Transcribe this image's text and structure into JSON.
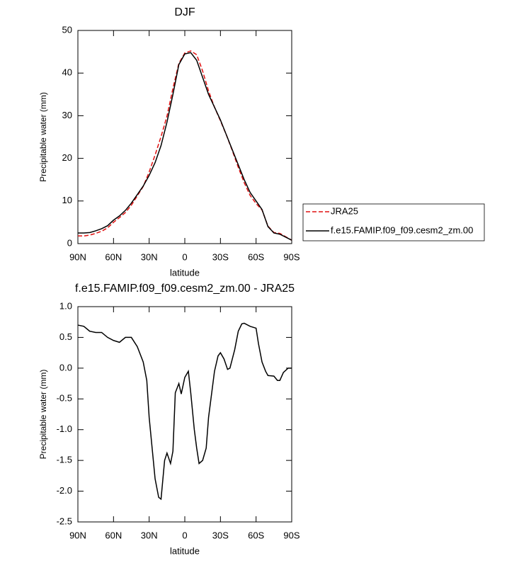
{
  "chart_data": [
    {
      "type": "line",
      "title": "DJF",
      "xlabel": "latitude",
      "ylabel": "Precipitable water (mm)",
      "x": [
        90,
        85,
        80,
        75,
        70,
        65,
        60,
        55,
        50,
        45,
        40,
        35,
        30,
        25,
        20,
        15,
        10,
        5,
        0,
        -5,
        -10,
        -15,
        -20,
        -25,
        -30,
        -35,
        -40,
        -45,
        -50,
        -55,
        -60,
        -65,
        -70,
        -75,
        -80,
        -85,
        -90
      ],
      "series": [
        {
          "name": "JRA25",
          "color": "#e01010",
          "line_style": "dashed",
          "values": [
            1.8,
            1.8,
            2.0,
            2.4,
            2.9,
            3.7,
            5.0,
            6.1,
            7.3,
            9.0,
            11.2,
            13.4,
            16.8,
            20.8,
            25.1,
            29.9,
            36.4,
            42.3,
            44.7,
            45.2,
            44.3,
            40.5,
            35.8,
            32.0,
            28.8,
            25.5,
            21.8,
            17.9,
            14.3,
            11.3,
            9.4,
            7.9,
            4.1,
            2.6,
            2.4,
            1.6,
            0.8
          ]
        },
        {
          "name": "f.e15.FAMIP.f09_f09.cesm2_zm.00",
          "color": "#000000",
          "line_style": "solid",
          "values": [
            2.5,
            2.5,
            2.6,
            3.0,
            3.5,
            4.2,
            5.5,
            6.5,
            7.8,
            9.5,
            11.5,
            13.5,
            16.0,
            19.0,
            23.0,
            28.5,
            35.0,
            42.0,
            44.5,
            44.8,
            43.0,
            39.0,
            35.0,
            32.0,
            29.0,
            25.5,
            22.0,
            18.5,
            15.0,
            12.0,
            10.0,
            8.0,
            4.0,
            2.5,
            2.2,
            1.5,
            0.8
          ]
        }
      ],
      "xlim": [
        90,
        -90
      ],
      "xticks": [
        {
          "value": 90,
          "label": "90N"
        },
        {
          "value": 60,
          "label": "60N"
        },
        {
          "value": 30,
          "label": "30N"
        },
        0,
        {
          "value": -30,
          "label": "30S"
        },
        {
          "value": -60,
          "label": "60S"
        },
        {
          "value": -90,
          "label": "90S"
        }
      ],
      "ylim": [
        0,
        50
      ],
      "yticks": [
        0,
        10,
        20,
        30,
        40,
        50
      ],
      "legend": "right"
    },
    {
      "type": "line",
      "title": "f.e15.FAMIP.f09_f09.cesm2_zm.00 - JRA25",
      "xlabel": "latitude",
      "ylabel": "Precipitable water (mm)",
      "x": [
        90,
        85,
        80,
        75,
        70,
        65,
        60,
        55,
        50,
        45,
        40,
        35,
        32,
        30,
        25,
        22,
        20,
        17,
        15,
        12,
        10,
        8,
        5,
        3,
        0,
        -3,
        -5,
        -8,
        -10,
        -12,
        -15,
        -18,
        -20,
        -25,
        -28,
        -30,
        -33,
        -36,
        -38,
        -42,
        -45,
        -48,
        -50,
        -55,
        -60,
        -62,
        -65,
        -68,
        -70,
        -75,
        -78,
        -80,
        -83,
        -87,
        -90
      ],
      "series": [
        {
          "color": "#000000",
          "line_style": "solid",
          "values": [
            0.7,
            0.68,
            0.6,
            0.58,
            0.58,
            0.5,
            0.45,
            0.42,
            0.5,
            0.5,
            0.35,
            0.1,
            -0.2,
            -0.8,
            -1.8,
            -2.1,
            -2.13,
            -1.5,
            -1.38,
            -1.55,
            -1.35,
            -0.4,
            -0.25,
            -0.42,
            -0.15,
            -0.05,
            -0.4,
            -1.0,
            -1.3,
            -1.55,
            -1.5,
            -1.3,
            -0.8,
            -0.05,
            0.2,
            0.25,
            0.15,
            -0.02,
            0.0,
            0.3,
            0.6,
            0.72,
            0.73,
            0.68,
            0.65,
            0.4,
            0.1,
            -0.05,
            -0.12,
            -0.13,
            -0.2,
            -0.2,
            -0.07,
            0.0,
            0.0
          ]
        }
      ],
      "xlim": [
        90,
        -90
      ],
      "xticks": [
        {
          "value": 90,
          "label": "90N"
        },
        {
          "value": 60,
          "label": "60N"
        },
        {
          "value": 30,
          "label": "30N"
        },
        0,
        {
          "value": -30,
          "label": "30S"
        },
        {
          "value": -60,
          "label": "60S"
        },
        {
          "value": -90,
          "label": "90S"
        }
      ],
      "ylim": [
        -2.5,
        1.0
      ],
      "yticks": [
        {
          "value": -2.5,
          "label": "-2.5"
        },
        {
          "value": -2,
          "label": "-2.0"
        },
        -1.5,
        {
          "value": -1,
          "label": "-1.0"
        },
        -0.5,
        {
          "value": 0,
          "label": "0.0"
        },
        0.5,
        {
          "value": 1,
          "label": "1.0"
        }
      ]
    }
  ]
}
